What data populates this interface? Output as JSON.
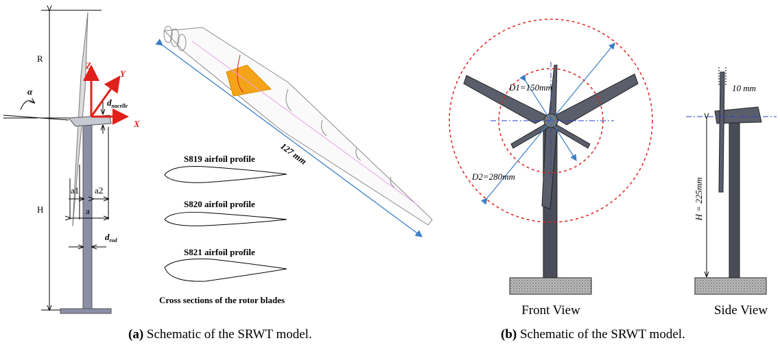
{
  "panel_a": {
    "labels": {
      "R": "R",
      "H": "H",
      "Z": "Z",
      "Y": "Y",
      "X": "X",
      "alpha": "α",
      "d_nacelle": {
        "symbol": "d",
        "subscript": "nacelle"
      },
      "a1": "a1",
      "a2": "a2",
      "a": "a",
      "d_rod": {
        "symbol": "d",
        "subscript": "rod"
      }
    },
    "blade_length": "127 mm",
    "airfoils": [
      "S819 airfoil profile",
      "S820 airfoil profile",
      "S821 airfoil profile"
    ],
    "cross_section_title": "Cross sections of the rotor blades",
    "caption": {
      "label": "(a)",
      "text": "Schematic of the SRWT model."
    }
  },
  "panel_b": {
    "d1": "D1=150mm",
    "d2": "D2=280mm",
    "blade_width": "10 mm",
    "height": "H = 225mm",
    "front_view": "Front View",
    "side_view": "Side View",
    "caption": {
      "label": "(b)",
      "text": "Schematic of the SRWT model."
    }
  }
}
